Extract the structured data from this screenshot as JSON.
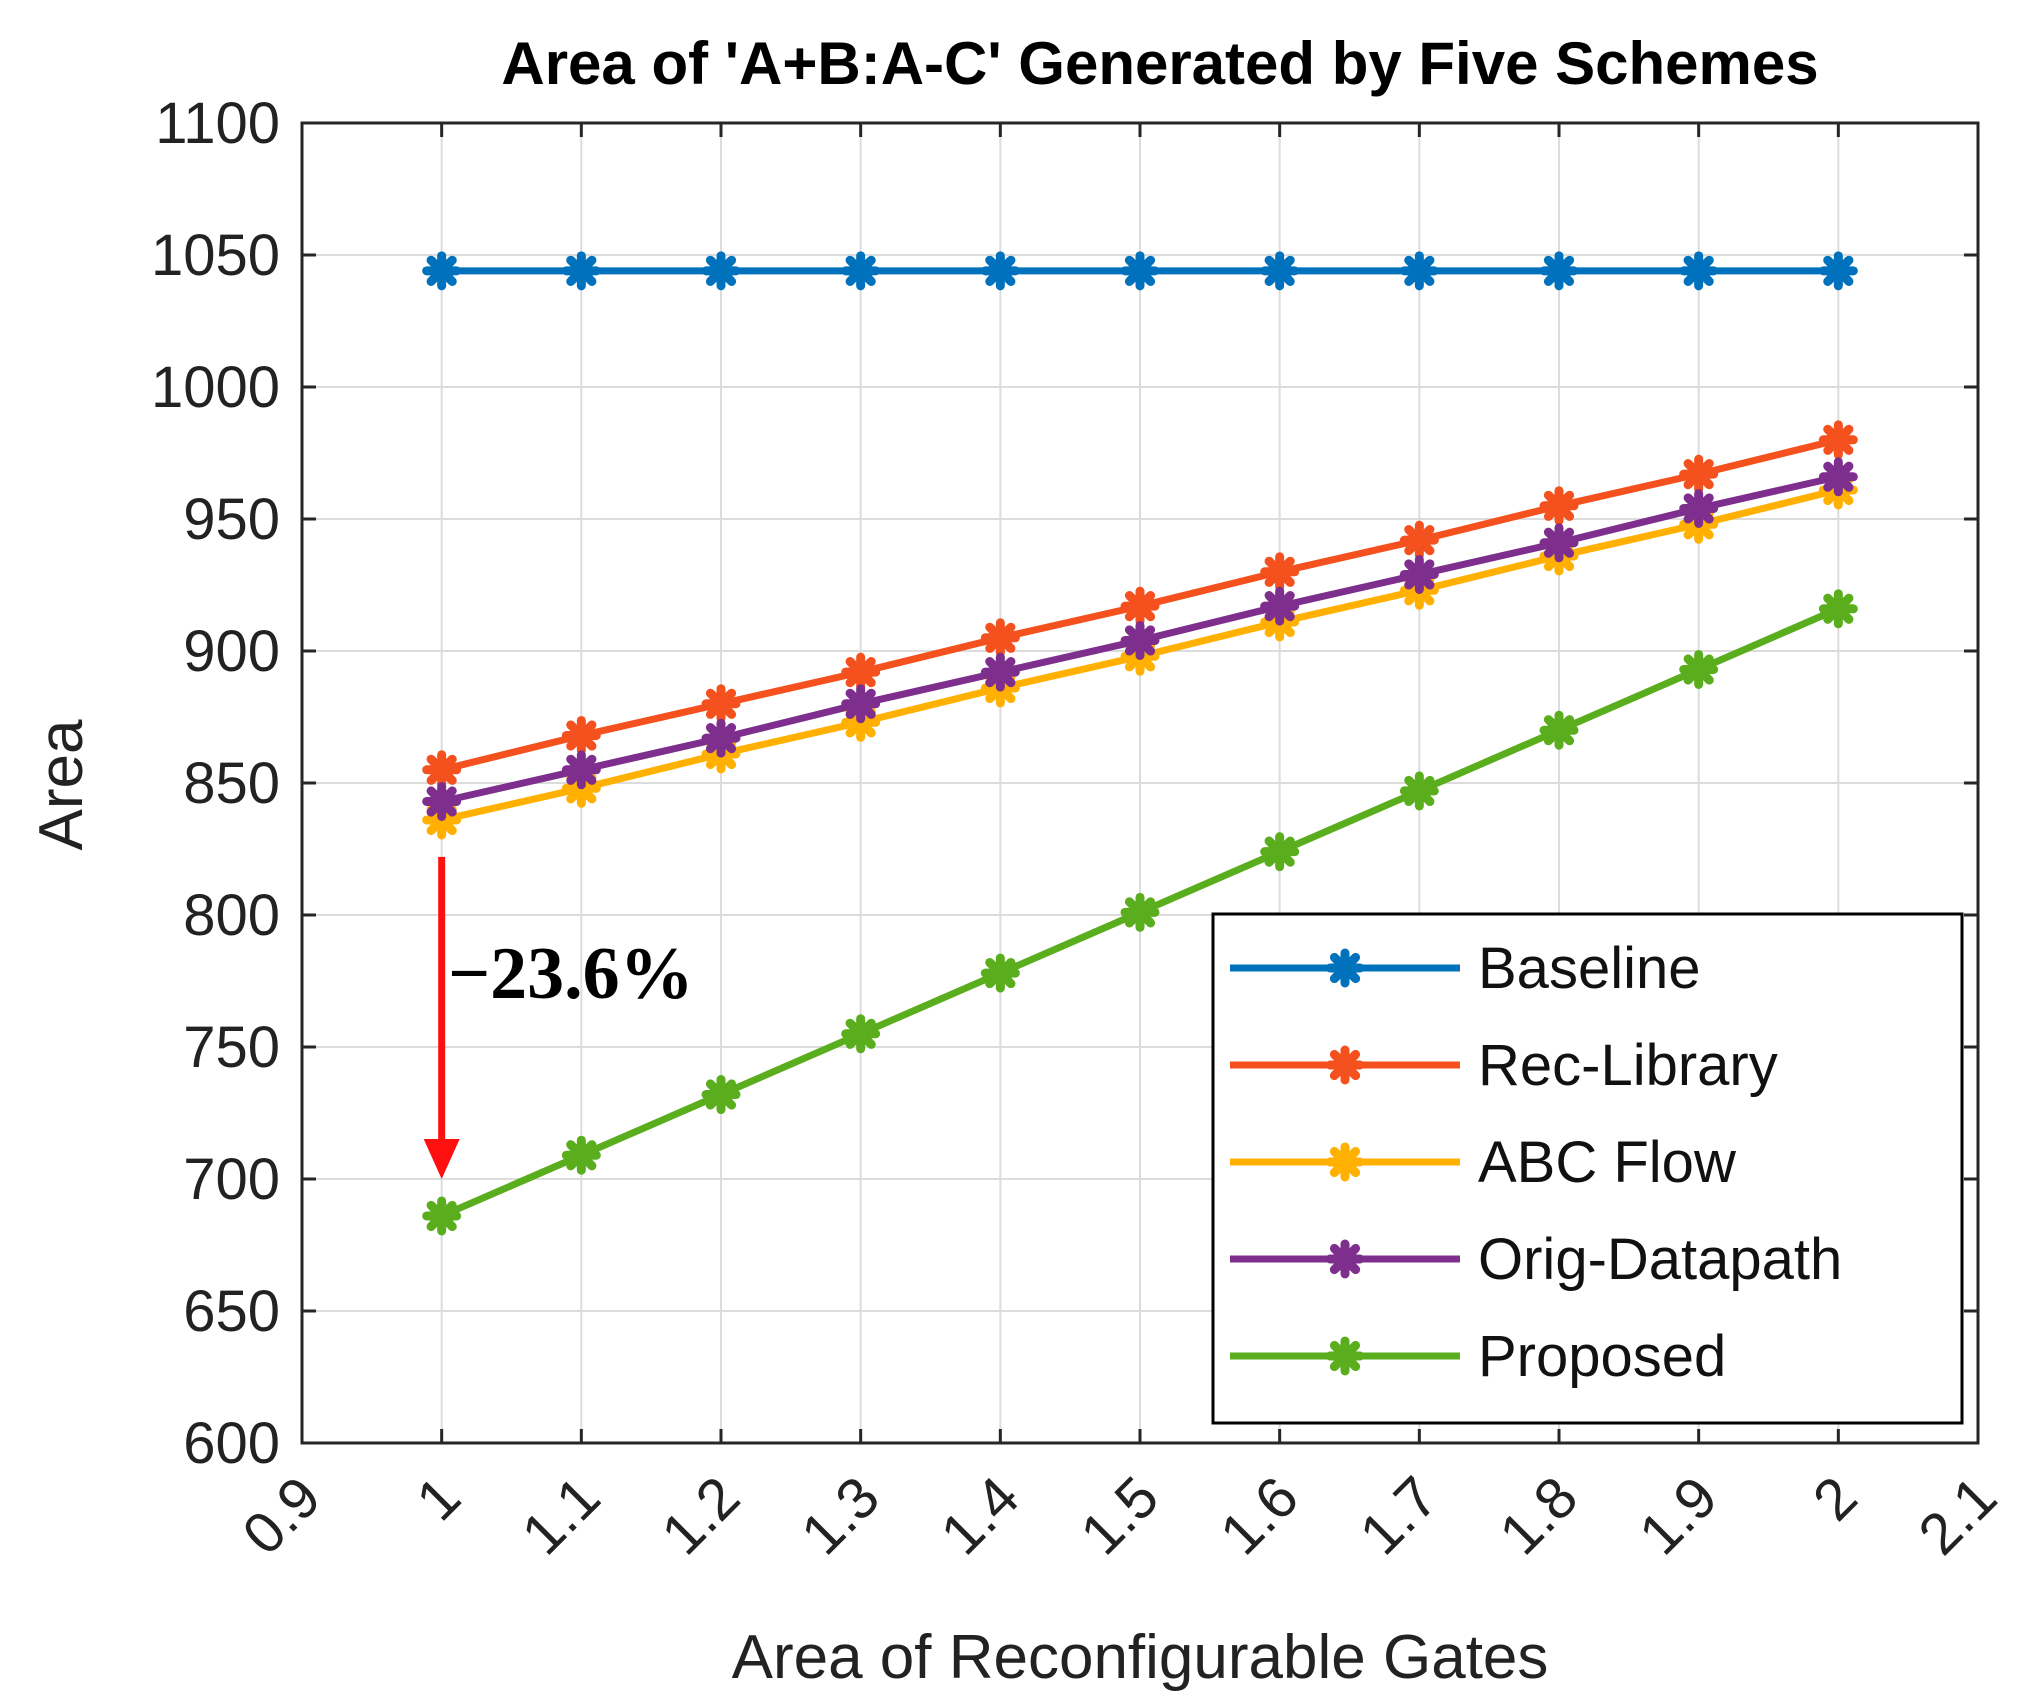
{
  "chart_data": {
    "type": "line",
    "title": "Area of 'A+B:A-C' Generated by Five Schemes",
    "xlabel": "Area of Reconfigurable Gates",
    "ylabel": "Area",
    "xlim": [
      0.9,
      2.1
    ],
    "ylim": [
      600,
      1100
    ],
    "xticks": [
      "0.9",
      "1",
      "1.1",
      "1.2",
      "1.3",
      "1.4",
      "1.5",
      "1.6",
      "1.7",
      "1.8",
      "1.9",
      "2",
      "2.1"
    ],
    "yticks": [
      "600",
      "650",
      "700",
      "750",
      "800",
      "850",
      "900",
      "950",
      "1000",
      "1050",
      "1100"
    ],
    "grid": true,
    "legend_position": "bottom-right",
    "x": [
      1.0,
      1.1,
      1.2,
      1.3,
      1.4,
      1.5,
      1.6,
      1.7,
      1.8,
      1.9,
      2.0
    ],
    "series": [
      {
        "name": "Baseline",
        "color": "#0072BD",
        "values": [
          1044,
          1044,
          1044,
          1044,
          1044,
          1044,
          1044,
          1044,
          1044,
          1044,
          1044
        ]
      },
      {
        "name": "Rec-Library",
        "color": "#F4511E",
        "values": [
          855,
          868,
          880,
          892,
          905,
          917,
          930,
          942,
          955,
          967,
          980
        ]
      },
      {
        "name": "ABC Flow",
        "color": "#FFB000",
        "values": [
          836,
          848,
          861,
          873,
          886,
          898,
          911,
          923,
          936,
          948,
          961
        ]
      },
      {
        "name": "Orig-Datapath",
        "color": "#7E2F8E",
        "values": [
          843,
          855,
          867,
          880,
          892,
          904,
          917,
          929,
          941,
          954,
          966
        ]
      },
      {
        "name": "Proposed",
        "color": "#5AAE1D",
        "values": [
          686,
          709,
          732,
          755,
          778,
          801,
          824,
          847,
          870,
          893,
          916
        ]
      }
    ],
    "annotations": [
      {
        "text": "−23.6%",
        "arrow_color": "#FF1010",
        "from": [
          1.0,
          822
        ],
        "to": [
          1.0,
          700
        ]
      }
    ]
  }
}
